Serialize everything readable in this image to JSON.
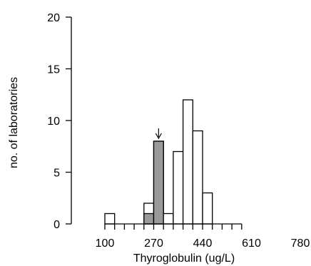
{
  "chart_data": {
    "type": "bar",
    "xlabel": "Thyroglobulin (ug/L)",
    "ylabel": "no. of laboratories",
    "xlim": [
      100,
      780
    ],
    "ylim": [
      0,
      20
    ],
    "x_ticks": [
      "100",
      "270",
      "440",
      "610",
      "780"
    ],
    "y_ticks": [
      "0",
      "5",
      "10",
      "15",
      "20"
    ],
    "bin_width": 34,
    "bins": [
      {
        "x_start": 100,
        "x_end": 134,
        "count": 1,
        "highlight_count": 0
      },
      {
        "x_start": 134,
        "x_end": 168,
        "count": 0,
        "highlight_count": 0
      },
      {
        "x_start": 168,
        "x_end": 202,
        "count": 0,
        "highlight_count": 0
      },
      {
        "x_start": 202,
        "x_end": 236,
        "count": 0,
        "highlight_count": 0
      },
      {
        "x_start": 236,
        "x_end": 270,
        "count": 2,
        "highlight_count": 1
      },
      {
        "x_start": 270,
        "x_end": 304,
        "count": 8,
        "highlight_count": 8
      },
      {
        "x_start": 304,
        "x_end": 338,
        "count": 1,
        "highlight_count": 0
      },
      {
        "x_start": 338,
        "x_end": 372,
        "count": 7,
        "highlight_count": 0
      },
      {
        "x_start": 372,
        "x_end": 406,
        "count": 12,
        "highlight_count": 0
      },
      {
        "x_start": 406,
        "x_end": 440,
        "count": 9,
        "highlight_count": 0
      },
      {
        "x_start": 440,
        "x_end": 474,
        "count": 3,
        "highlight_count": 0
      },
      {
        "x_start": 474,
        "x_end": 508,
        "count": 0,
        "highlight_count": 0
      },
      {
        "x_start": 508,
        "x_end": 542,
        "count": 0,
        "highlight_count": 0
      },
      {
        "x_start": 542,
        "x_end": 576,
        "count": 0,
        "highlight_count": 0
      }
    ],
    "arrow_marker": {
      "x": 287
    },
    "colors": {
      "highlight_fill": "#999999",
      "bar_fill": "#ffffff",
      "stroke": "#000000"
    }
  }
}
